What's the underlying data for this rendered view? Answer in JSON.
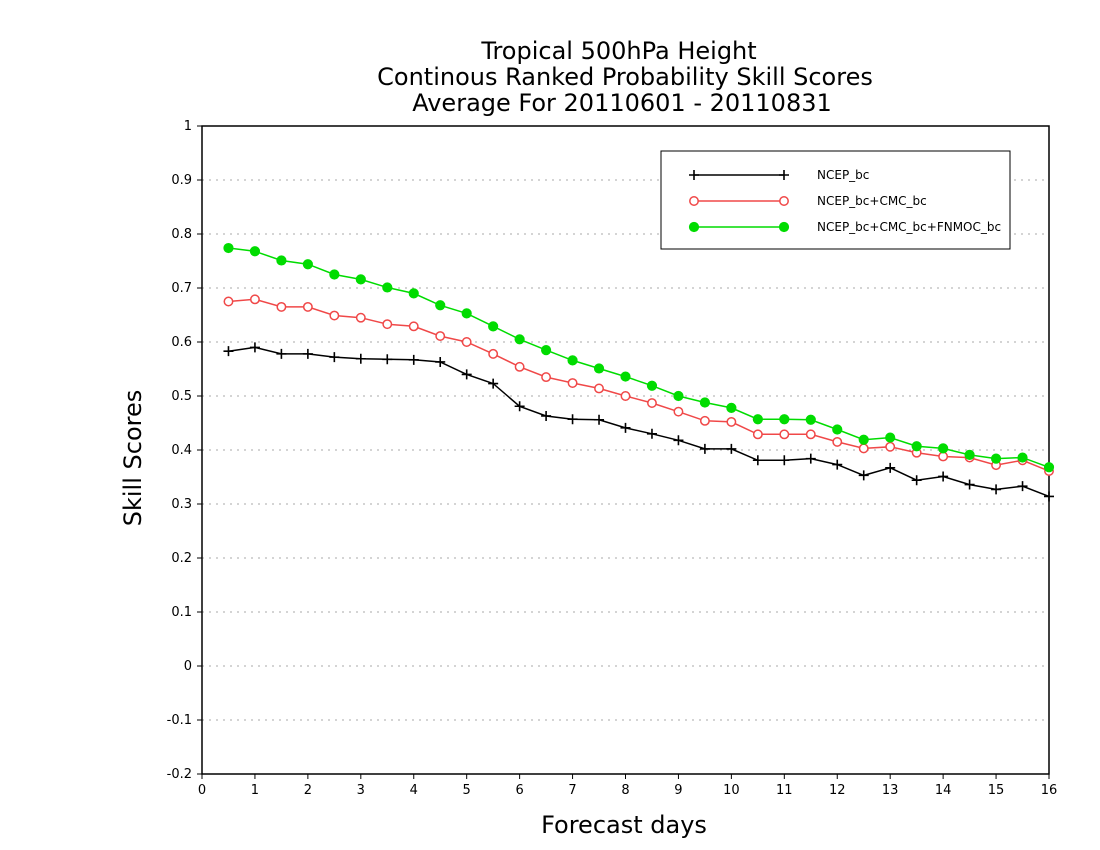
{
  "chart_data": {
    "type": "line",
    "title": [
      "Tropical 500hPa Height",
      "Continous Ranked Probability Skill Scores",
      "Average For 20110601 - 20110831"
    ],
    "xlabel": "Forecast days",
    "ylabel": "Skill Scores",
    "xlim": [
      0,
      16
    ],
    "ylim": [
      -0.2,
      1
    ],
    "xticks": [
      0,
      1,
      2,
      3,
      4,
      5,
      6,
      7,
      8,
      9,
      10,
      11,
      12,
      13,
      14,
      15,
      16
    ],
    "yticks": [
      -0.2,
      -0.1,
      0,
      0.1,
      0.2,
      0.3,
      0.4,
      0.5,
      0.6,
      0.7,
      0.8,
      0.9,
      1
    ],
    "ytick_labels": [
      "-0.2",
      "-0.1",
      "0",
      "0.1",
      "0.2",
      "0.3",
      "0.4",
      "0.5",
      "0.6",
      "0.7",
      "0.8",
      "0.9",
      "1"
    ],
    "grid": "horizontal dotted",
    "legend_position": "top-right",
    "x": [
      0.5,
      1,
      1.5,
      2,
      2.5,
      3,
      3.5,
      4,
      4.5,
      5,
      5.5,
      6,
      6.5,
      7,
      7.5,
      8,
      8.5,
      9,
      9.5,
      10,
      10.5,
      11,
      11.5,
      12,
      12.5,
      13,
      13.5,
      14,
      14.5,
      15,
      15.5,
      16
    ],
    "series": [
      {
        "name": "NCEP_bc",
        "color": "#000000",
        "marker": "plus",
        "values": [
          0.583,
          0.59,
          0.578,
          0.578,
          0.572,
          0.569,
          0.568,
          0.567,
          0.563,
          0.54,
          0.523,
          0.481,
          0.463,
          0.457,
          0.456,
          0.441,
          0.43,
          0.418,
          0.402,
          0.402,
          0.381,
          0.381,
          0.384,
          0.373,
          0.353,
          0.367,
          0.344,
          0.351,
          0.336,
          0.327,
          0.333,
          0.314
        ]
      },
      {
        "name": "NCEP_bc+CMC_bc",
        "color": "#f04848",
        "marker": "open-circle",
        "values": [
          0.675,
          0.679,
          0.665,
          0.665,
          0.649,
          0.645,
          0.633,
          0.629,
          0.611,
          0.6,
          0.578,
          0.554,
          0.535,
          0.524,
          0.514,
          0.5,
          0.487,
          0.471,
          0.454,
          0.452,
          0.429,
          0.429,
          0.429,
          0.415,
          0.403,
          0.406,
          0.395,
          0.388,
          0.386,
          0.372,
          0.381,
          0.361
        ]
      },
      {
        "name": "NCEP_bc+CMC_bc+FNMOC_bc",
        "color": "#00dc00",
        "marker": "filled-circle",
        "values": [
          0.774,
          0.768,
          0.751,
          0.744,
          0.725,
          0.716,
          0.701,
          0.69,
          0.668,
          0.653,
          0.629,
          0.605,
          0.585,
          0.566,
          0.551,
          0.536,
          0.519,
          0.5,
          0.488,
          0.478,
          0.457,
          0.457,
          0.456,
          0.438,
          0.419,
          0.423,
          0.407,
          0.403,
          0.391,
          0.384,
          0.386,
          0.368
        ]
      }
    ]
  }
}
